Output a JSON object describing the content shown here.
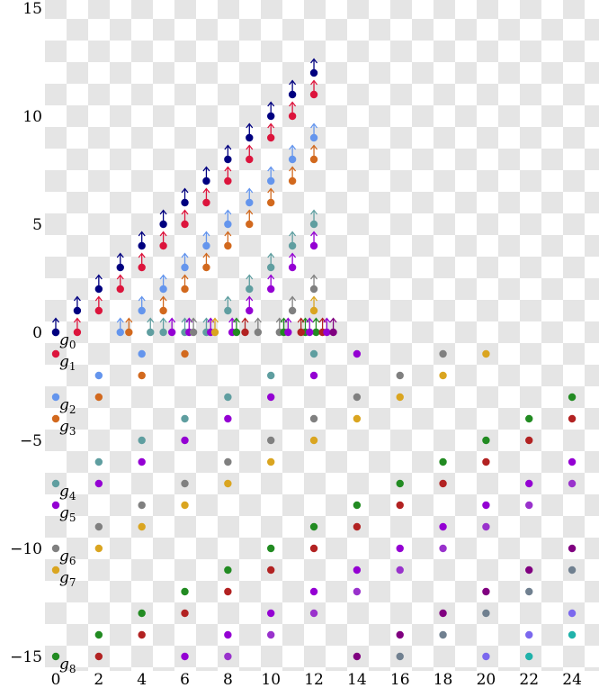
{
  "chart_data": {
    "type": "scatter",
    "title": "",
    "xlabel": "",
    "ylabel": "",
    "xlim": [
      0,
      25
    ],
    "ylim": [
      -15.5,
      15
    ],
    "x_ticks": [
      0,
      2,
      4,
      6,
      8,
      10,
      12,
      14,
      16,
      18,
      20,
      22,
      24
    ],
    "y_ticks": [
      -15,
      -10,
      -5,
      0,
      5,
      10,
      15
    ],
    "background": "checkerboard",
    "checker_colors": [
      "#e5e5e5",
      "#ffffff"
    ],
    "generator_labels": [
      {
        "base": "g",
        "sub": "0",
        "x": 0,
        "y": 0,
        "color": "#000080"
      },
      {
        "base": "g",
        "sub": "1",
        "x": 0,
        "y": -1,
        "color": "#dc143c"
      },
      {
        "base": "g",
        "sub": "2",
        "x": 0,
        "y": -3,
        "color": "#6495ed"
      },
      {
        "base": "g",
        "sub": "3",
        "x": 0,
        "y": -4,
        "color": "#d2691e"
      },
      {
        "base": "g",
        "sub": "4",
        "x": 0,
        "y": -7,
        "color": "#5f9ea0"
      },
      {
        "base": "g",
        "sub": "5",
        "x": 0,
        "y": -8,
        "color": "#9400d3"
      },
      {
        "base": "g",
        "sub": "6",
        "x": 0,
        "y": -10,
        "color": "#808080"
      },
      {
        "base": "g",
        "sub": "7",
        "x": 0,
        "y": -11,
        "color": "#daa520"
      },
      {
        "base": "g",
        "sub": "8",
        "x": 0,
        "y": -15,
        "color": "#228b22"
      }
    ],
    "tower_points": [
      {
        "x": 0,
        "y": 0,
        "color": "#000080"
      },
      {
        "x": 1,
        "y": 1,
        "color": "#000080"
      },
      {
        "x": 2,
        "y": 2,
        "color": "#000080"
      },
      {
        "x": 3,
        "y": 3,
        "color": "#000080"
      },
      {
        "x": 4,
        "y": 4,
        "color": "#000080"
      },
      {
        "x": 5,
        "y": 5,
        "color": "#000080"
      },
      {
        "x": 6,
        "y": 6,
        "color": "#000080"
      },
      {
        "x": 7,
        "y": 7,
        "color": "#000080"
      },
      {
        "x": 8,
        "y": 8,
        "color": "#000080"
      },
      {
        "x": 9,
        "y": 9,
        "color": "#000080"
      },
      {
        "x": 10,
        "y": 10,
        "color": "#000080"
      },
      {
        "x": 11,
        "y": 11,
        "color": "#000080"
      },
      {
        "x": 12,
        "y": 12,
        "color": "#000080"
      },
      {
        "x": 1,
        "y": 0,
        "color": "#dc143c"
      },
      {
        "x": 2,
        "y": 1,
        "color": "#dc143c"
      },
      {
        "x": 3,
        "y": 2,
        "color": "#dc143c"
      },
      {
        "x": 4,
        "y": 3,
        "color": "#dc143c"
      },
      {
        "x": 5,
        "y": 4,
        "color": "#dc143c"
      },
      {
        "x": 6,
        "y": 5,
        "color": "#dc143c"
      },
      {
        "x": 7,
        "y": 6,
        "color": "#dc143c"
      },
      {
        "x": 8,
        "y": 7,
        "color": "#dc143c"
      },
      {
        "x": 9,
        "y": 8,
        "color": "#dc143c"
      },
      {
        "x": 10,
        "y": 9,
        "color": "#dc143c"
      },
      {
        "x": 11,
        "y": 10,
        "color": "#dc143c"
      },
      {
        "x": 12,
        "y": 11,
        "color": "#dc143c"
      },
      {
        "x": 3,
        "y": 0,
        "color": "#6495ed"
      },
      {
        "x": 4,
        "y": 1,
        "color": "#6495ed"
      },
      {
        "x": 5,
        "y": 2,
        "color": "#6495ed"
      },
      {
        "x": 6,
        "y": 3,
        "color": "#6495ed"
      },
      {
        "x": 7,
        "y": 4,
        "color": "#6495ed"
      },
      {
        "x": 8,
        "y": 5,
        "color": "#6495ed"
      },
      {
        "x": 9,
        "y": 6,
        "color": "#6495ed"
      },
      {
        "x": 10,
        "y": 7,
        "color": "#6495ed"
      },
      {
        "x": 11,
        "y": 8,
        "color": "#6495ed"
      },
      {
        "x": 12,
        "y": 9,
        "color": "#6495ed"
      },
      {
        "x": 3.4,
        "y": 0,
        "color": "#d2691e"
      },
      {
        "x": 5,
        "y": 1,
        "color": "#d2691e"
      },
      {
        "x": 6,
        "y": 2,
        "color": "#d2691e"
      },
      {
        "x": 7,
        "y": 3,
        "color": "#d2691e"
      },
      {
        "x": 8,
        "y": 4,
        "color": "#d2691e"
      },
      {
        "x": 9,
        "y": 5,
        "color": "#d2691e"
      },
      {
        "x": 10,
        "y": 6,
        "color": "#d2691e"
      },
      {
        "x": 11,
        "y": 7,
        "color": "#d2691e"
      },
      {
        "x": 12,
        "y": 8,
        "color": "#d2691e"
      },
      {
        "x": 4.4,
        "y": 0,
        "color": "#5f9ea0"
      },
      {
        "x": 5,
        "y": 0,
        "color": "#5f9ea0"
      },
      {
        "x": 6,
        "y": 0,
        "color": "#5f9ea0"
      },
      {
        "x": 7,
        "y": 0,
        "color": "#5f9ea0"
      },
      {
        "x": 8,
        "y": 1,
        "color": "#5f9ea0"
      },
      {
        "x": 9,
        "y": 2,
        "color": "#5f9ea0"
      },
      {
        "x": 10,
        "y": 3,
        "color": "#5f9ea0"
      },
      {
        "x": 11,
        "y": 4,
        "color": "#5f9ea0"
      },
      {
        "x": 12,
        "y": 5,
        "color": "#5f9ea0"
      },
      {
        "x": 5.4,
        "y": 0,
        "color": "#9400d3"
      },
      {
        "x": 6.2,
        "y": 0,
        "color": "#9400d3"
      },
      {
        "x": 7.2,
        "y": 0,
        "color": "#9400d3"
      },
      {
        "x": 8.2,
        "y": 0,
        "color": "#9400d3"
      },
      {
        "x": 9,
        "y": 1,
        "color": "#9400d3"
      },
      {
        "x": 10,
        "y": 2,
        "color": "#9400d3"
      },
      {
        "x": 11,
        "y": 3,
        "color": "#9400d3"
      },
      {
        "x": 12,
        "y": 4,
        "color": "#9400d3"
      },
      {
        "x": 6.4,
        "y": 0,
        "color": "#808080"
      },
      {
        "x": 9.4,
        "y": 0,
        "color": "#808080"
      },
      {
        "x": 10.4,
        "y": 0,
        "color": "#808080"
      },
      {
        "x": 11,
        "y": 1,
        "color": "#808080"
      },
      {
        "x": 12,
        "y": 2,
        "color": "#808080"
      },
      {
        "x": 7.4,
        "y": 0,
        "color": "#daa520"
      },
      {
        "x": 12,
        "y": 1,
        "color": "#daa520"
      },
      {
        "x": 8.4,
        "y": 0,
        "color": "#228b22"
      },
      {
        "x": 10.6,
        "y": 0,
        "color": "#228b22"
      },
      {
        "x": 11.6,
        "y": 0,
        "color": "#228b22"
      },
      {
        "x": 12.1,
        "y": 0,
        "color": "#228b22"
      },
      {
        "x": 8.8,
        "y": 0,
        "color": "#b22222"
      },
      {
        "x": 11.4,
        "y": 0,
        "color": "#b22222"
      },
      {
        "x": 12.4,
        "y": 0,
        "color": "#b22222"
      },
      {
        "x": 10.8,
        "y": 0,
        "color": "#9400d3"
      },
      {
        "x": 11.8,
        "y": 0,
        "color": "#9400d3"
      },
      {
        "x": 12.6,
        "y": 0,
        "color": "#9400d3"
      },
      {
        "x": 12.9,
        "y": 0,
        "color": "#800080"
      }
    ],
    "points": [
      {
        "x": 0,
        "y": 0,
        "color": "#000080"
      },
      {
        "x": 0,
        "y": -1,
        "color": "#dc143c"
      },
      {
        "x": 0,
        "y": -3,
        "color": "#6495ed"
      },
      {
        "x": 0,
        "y": -4,
        "color": "#d2691e"
      },
      {
        "x": 0,
        "y": -7,
        "color": "#5f9ea0"
      },
      {
        "x": 0,
        "y": -8,
        "color": "#9400d3"
      },
      {
        "x": 0,
        "y": -10,
        "color": "#808080"
      },
      {
        "x": 0,
        "y": -11,
        "color": "#daa520"
      },
      {
        "x": 0,
        "y": -15,
        "color": "#228b22"
      },
      {
        "x": 2,
        "y": -2,
        "color": "#6495ed"
      },
      {
        "x": 2,
        "y": -3,
        "color": "#d2691e"
      },
      {
        "x": 2,
        "y": -6,
        "color": "#5f9ea0"
      },
      {
        "x": 2,
        "y": -7,
        "color": "#9400d3"
      },
      {
        "x": 2,
        "y": -9,
        "color": "#808080"
      },
      {
        "x": 2,
        "y": -10,
        "color": "#daa520"
      },
      {
        "x": 2,
        "y": -14,
        "color": "#228b22"
      },
      {
        "x": 2,
        "y": -15,
        "color": "#b22222"
      },
      {
        "x": 4,
        "y": -1,
        "color": "#6495ed"
      },
      {
        "x": 4,
        "y": -2,
        "color": "#d2691e"
      },
      {
        "x": 4,
        "y": -5,
        "color": "#5f9ea0"
      },
      {
        "x": 4,
        "y": -6,
        "color": "#9400d3"
      },
      {
        "x": 4,
        "y": -8,
        "color": "#808080"
      },
      {
        "x": 4,
        "y": -9,
        "color": "#daa520"
      },
      {
        "x": 4,
        "y": -13,
        "color": "#228b22"
      },
      {
        "x": 4,
        "y": -14,
        "color": "#b22222"
      },
      {
        "x": 6,
        "y": -1,
        "color": "#d2691e"
      },
      {
        "x": 6,
        "y": -4,
        "color": "#5f9ea0"
      },
      {
        "x": 6,
        "y": -5,
        "color": "#9400d3"
      },
      {
        "x": 6,
        "y": -7,
        "color": "#808080"
      },
      {
        "x": 6,
        "y": -8,
        "color": "#daa520"
      },
      {
        "x": 6,
        "y": -12,
        "color": "#228b22"
      },
      {
        "x": 6,
        "y": -13,
        "color": "#b22222"
      },
      {
        "x": 6,
        "y": -15,
        "color": "#9400d3"
      },
      {
        "x": 8,
        "y": -3,
        "color": "#5f9ea0"
      },
      {
        "x": 8,
        "y": -4,
        "color": "#9400d3"
      },
      {
        "x": 8,
        "y": -6,
        "color": "#808080"
      },
      {
        "x": 8,
        "y": -7,
        "color": "#daa520"
      },
      {
        "x": 8,
        "y": -11,
        "color": "#228b22"
      },
      {
        "x": 8,
        "y": -12,
        "color": "#b22222"
      },
      {
        "x": 8,
        "y": -14,
        "color": "#9400d3"
      },
      {
        "x": 8,
        "y": -15,
        "color": "#9932cc"
      },
      {
        "x": 10,
        "y": -2,
        "color": "#5f9ea0"
      },
      {
        "x": 10,
        "y": -3,
        "color": "#9400d3"
      },
      {
        "x": 10,
        "y": -5,
        "color": "#808080"
      },
      {
        "x": 10,
        "y": -6,
        "color": "#daa520"
      },
      {
        "x": 10,
        "y": -10,
        "color": "#228b22"
      },
      {
        "x": 10,
        "y": -11,
        "color": "#b22222"
      },
      {
        "x": 10,
        "y": -13,
        "color": "#9400d3"
      },
      {
        "x": 10,
        "y": -14,
        "color": "#9932cc"
      },
      {
        "x": 12,
        "y": -1,
        "color": "#5f9ea0"
      },
      {
        "x": 12,
        "y": -2,
        "color": "#9400d3"
      },
      {
        "x": 12,
        "y": -4,
        "color": "#808080"
      },
      {
        "x": 12,
        "y": -5,
        "color": "#daa520"
      },
      {
        "x": 12,
        "y": -9,
        "color": "#228b22"
      },
      {
        "x": 12,
        "y": -10,
        "color": "#b22222"
      },
      {
        "x": 12,
        "y": -12,
        "color": "#9400d3"
      },
      {
        "x": 12,
        "y": -13,
        "color": "#9932cc"
      },
      {
        "x": 14,
        "y": -1,
        "color": "#9400d3"
      },
      {
        "x": 14,
        "y": -3,
        "color": "#808080"
      },
      {
        "x": 14,
        "y": -4,
        "color": "#daa520"
      },
      {
        "x": 14,
        "y": -8,
        "color": "#228b22"
      },
      {
        "x": 14,
        "y": -9,
        "color": "#b22222"
      },
      {
        "x": 14,
        "y": -11,
        "color": "#9400d3"
      },
      {
        "x": 14,
        "y": -12,
        "color": "#9932cc"
      },
      {
        "x": 14,
        "y": -15,
        "color": "#800080"
      },
      {
        "x": 16,
        "y": -2,
        "color": "#808080"
      },
      {
        "x": 16,
        "y": -3,
        "color": "#daa520"
      },
      {
        "x": 16,
        "y": -7,
        "color": "#228b22"
      },
      {
        "x": 16,
        "y": -8,
        "color": "#b22222"
      },
      {
        "x": 16,
        "y": -10,
        "color": "#9400d3"
      },
      {
        "x": 16,
        "y": -11,
        "color": "#9932cc"
      },
      {
        "x": 16,
        "y": -14,
        "color": "#800080"
      },
      {
        "x": 16,
        "y": -15,
        "color": "#708090"
      },
      {
        "x": 18,
        "y": -1,
        "color": "#808080"
      },
      {
        "x": 18,
        "y": -2,
        "color": "#daa520"
      },
      {
        "x": 18,
        "y": -6,
        "color": "#228b22"
      },
      {
        "x": 18,
        "y": -7,
        "color": "#b22222"
      },
      {
        "x": 18,
        "y": -9,
        "color": "#9400d3"
      },
      {
        "x": 18,
        "y": -10,
        "color": "#9932cc"
      },
      {
        "x": 18,
        "y": -13,
        "color": "#800080"
      },
      {
        "x": 18,
        "y": -14,
        "color": "#708090"
      },
      {
        "x": 20,
        "y": -1,
        "color": "#daa520"
      },
      {
        "x": 20,
        "y": -5,
        "color": "#228b22"
      },
      {
        "x": 20,
        "y": -6,
        "color": "#b22222"
      },
      {
        "x": 20,
        "y": -8,
        "color": "#9400d3"
      },
      {
        "x": 20,
        "y": -9,
        "color": "#9932cc"
      },
      {
        "x": 20,
        "y": -12,
        "color": "#800080"
      },
      {
        "x": 20,
        "y": -13,
        "color": "#708090"
      },
      {
        "x": 20,
        "y": -15,
        "color": "#7b68ee"
      },
      {
        "x": 22,
        "y": -4,
        "color": "#228b22"
      },
      {
        "x": 22,
        "y": -5,
        "color": "#b22222"
      },
      {
        "x": 22,
        "y": -7,
        "color": "#9400d3"
      },
      {
        "x": 22,
        "y": -8,
        "color": "#9932cc"
      },
      {
        "x": 22,
        "y": -11,
        "color": "#800080"
      },
      {
        "x": 22,
        "y": -12,
        "color": "#708090"
      },
      {
        "x": 22,
        "y": -14,
        "color": "#7b68ee"
      },
      {
        "x": 22,
        "y": -15,
        "color": "#20b2aa"
      },
      {
        "x": 24,
        "y": -3,
        "color": "#228b22"
      },
      {
        "x": 24,
        "y": -4,
        "color": "#b22222"
      },
      {
        "x": 24,
        "y": -6,
        "color": "#9400d3"
      },
      {
        "x": 24,
        "y": -7,
        "color": "#9932cc"
      },
      {
        "x": 24,
        "y": -10,
        "color": "#800080"
      },
      {
        "x": 24,
        "y": -11,
        "color": "#708090"
      },
      {
        "x": 24,
        "y": -13,
        "color": "#7b68ee"
      },
      {
        "x": 24,
        "y": -14,
        "color": "#20b2aa"
      }
    ]
  }
}
